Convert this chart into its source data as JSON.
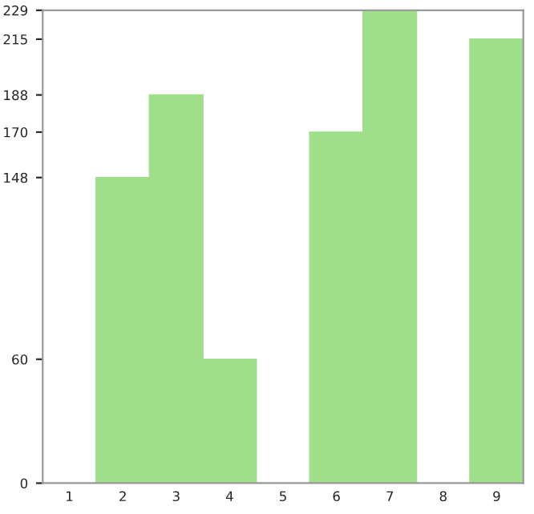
{
  "chart_data": {
    "type": "bar",
    "categories": [
      "1",
      "2",
      "3",
      "4",
      "5",
      "6",
      "7",
      "8",
      "9"
    ],
    "values": [
      0,
      148,
      188,
      60,
      0,
      170,
      229,
      0,
      215
    ],
    "color": "#9fdf8a",
    "ylim": [
      0,
      229
    ],
    "yticks": [
      0,
      60,
      148,
      170,
      188,
      215,
      229
    ],
    "grid": false
  }
}
